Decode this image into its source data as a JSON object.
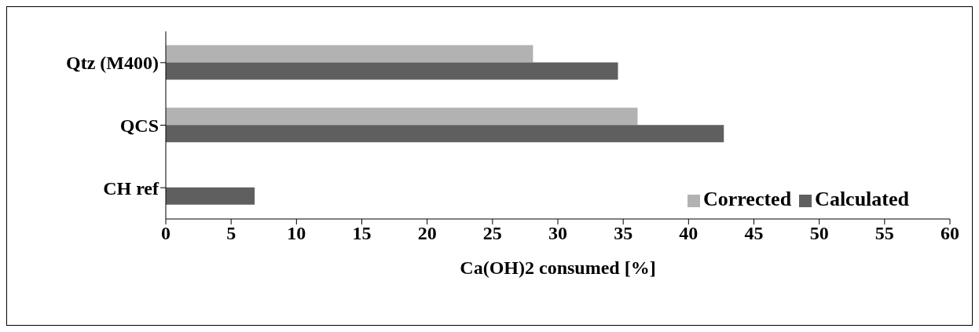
{
  "chart_data": {
    "type": "bar",
    "orientation": "horizontal",
    "xlabel": "Ca(OH)2 consumed [%]",
    "categories": [
      "Qtz (M400)",
      "QCS",
      "CH ref"
    ],
    "series": [
      {
        "name": "Corrected",
        "color": "#b2b2b2",
        "values": [
          28.1,
          36.1,
          null
        ]
      },
      {
        "name": "Calculated",
        "color": "#5f5f5f",
        "values": [
          34.6,
          42.7,
          6.8
        ]
      }
    ],
    "xlim": [
      0,
      60
    ],
    "xticks": [
      0,
      5,
      10,
      15,
      20,
      25,
      30,
      35,
      40,
      45,
      50,
      55,
      60
    ],
    "grid": false,
    "legend": "bottom right"
  }
}
